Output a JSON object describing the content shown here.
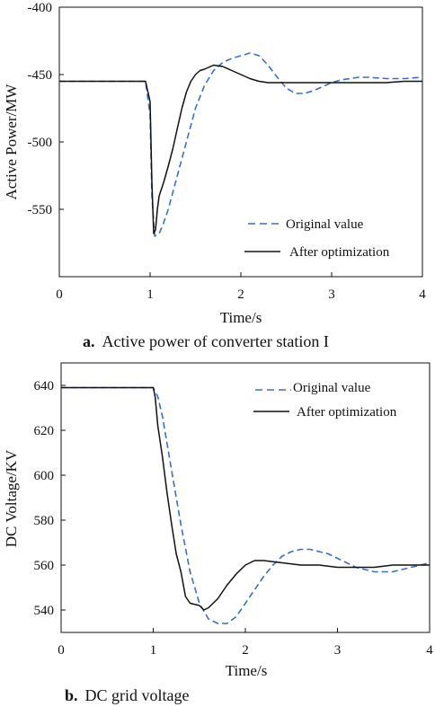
{
  "chart_data": [
    {
      "type": "line",
      "caption_letter": "a.",
      "caption_text": "Active power of converter station I",
      "xlabel": "Time/s",
      "ylabel": "Active Power/MW",
      "xlim": [
        0,
        4
      ],
      "ylim": [
        -600,
        -400
      ],
      "xticks": [
        0,
        1,
        2,
        3,
        4
      ],
      "yticks": [
        -400,
        -450,
        -500,
        -550
      ],
      "grid": false,
      "legend_position": "bottom-right",
      "series": [
        {
          "name": "Original value",
          "color": "#3a6fc4",
          "style": "dashed",
          "x": [
            0,
            0.2,
            0.4,
            0.6,
            0.8,
            0.95,
            1.0,
            1.02,
            1.05,
            1.1,
            1.15,
            1.2,
            1.3,
            1.4,
            1.5,
            1.6,
            1.7,
            1.8,
            1.9,
            2.0,
            2.1,
            2.2,
            2.3,
            2.4,
            2.5,
            2.6,
            2.7,
            2.8,
            2.9,
            3.0,
            3.1,
            3.2,
            3.3,
            3.4,
            3.6,
            3.8,
            4.0
          ],
          "y": [
            -455,
            -455,
            -455,
            -455,
            -455,
            -455,
            -480,
            -540,
            -570,
            -568,
            -560,
            -550,
            -525,
            -500,
            -475,
            -458,
            -447,
            -441,
            -438,
            -436,
            -434,
            -436,
            -443,
            -452,
            -460,
            -464,
            -464,
            -462,
            -459,
            -456,
            -454,
            -453,
            -452,
            -452,
            -453,
            -453,
            -452
          ]
        },
        {
          "name": "After optimization",
          "color": "#111111",
          "style": "solid",
          "x": [
            0,
            0.2,
            0.4,
            0.6,
            0.8,
            0.95,
            1.0,
            1.02,
            1.04,
            1.06,
            1.08,
            1.1,
            1.15,
            1.2,
            1.25,
            1.3,
            1.35,
            1.4,
            1.45,
            1.5,
            1.55,
            1.6,
            1.7,
            1.8,
            1.9,
            2.0,
            2.1,
            2.2,
            2.3,
            2.4,
            2.6,
            2.8,
            3.0,
            3.2,
            3.4,
            3.6,
            3.8,
            4.0
          ],
          "y": [
            -455,
            -455,
            -455,
            -455,
            -455,
            -455,
            -470,
            -530,
            -568,
            -565,
            -550,
            -540,
            -530,
            -518,
            -505,
            -490,
            -475,
            -463,
            -455,
            -450,
            -447,
            -446,
            -443,
            -444,
            -447,
            -450,
            -453,
            -455,
            -456,
            -456,
            -456,
            -456,
            -456,
            -456,
            -456,
            -456,
            -455,
            -455
          ]
        }
      ]
    },
    {
      "type": "line",
      "caption_letter": "b.",
      "caption_text": "DC grid voltage",
      "xlabel": "Time/s",
      "ylabel": "DC Voltage/KV",
      "xlim": [
        0,
        4
      ],
      "ylim": [
        530,
        650
      ],
      "xticks": [
        0,
        1,
        2,
        3,
        4
      ],
      "yticks": [
        540,
        560,
        580,
        600,
        620,
        640
      ],
      "grid": false,
      "legend_position": "top-right",
      "series": [
        {
          "name": "Original value",
          "color": "#3a6fc4",
          "style": "dashed",
          "x": [
            0,
            0.2,
            0.4,
            0.6,
            0.8,
            1.0,
            1.05,
            1.1,
            1.2,
            1.3,
            1.4,
            1.5,
            1.6,
            1.7,
            1.8,
            1.9,
            2.0,
            2.1,
            2.2,
            2.3,
            2.4,
            2.5,
            2.6,
            2.7,
            2.8,
            2.9,
            3.0,
            3.1,
            3.2,
            3.3,
            3.4,
            3.5,
            3.6,
            3.7,
            3.8,
            4.0
          ],
          "y": [
            639,
            639,
            639,
            639,
            639,
            639,
            635,
            626,
            602,
            578,
            557,
            543,
            536,
            534,
            534,
            537,
            543,
            549,
            555,
            560,
            564,
            566,
            567,
            567,
            566,
            565,
            563,
            561,
            559,
            558,
            557,
            557,
            557,
            558,
            559,
            561
          ]
        },
        {
          "name": "After optimization",
          "color": "#111111",
          "style": "solid",
          "x": [
            0,
            0.2,
            0.4,
            0.6,
            0.8,
            1.0,
            1.02,
            1.05,
            1.1,
            1.15,
            1.2,
            1.25,
            1.3,
            1.35,
            1.4,
            1.5,
            1.55,
            1.6,
            1.7,
            1.8,
            1.9,
            2.0,
            2.1,
            2.2,
            2.4,
            2.6,
            2.8,
            3.0,
            3.2,
            3.4,
            3.6,
            3.8,
            4.0
          ],
          "y": [
            639,
            639,
            639,
            639,
            639,
            639,
            635,
            622,
            608,
            592,
            578,
            565,
            557,
            546,
            543,
            542,
            540,
            541,
            545,
            551,
            556,
            560,
            562,
            562,
            561,
            560,
            560,
            559,
            559,
            559,
            560,
            560,
            560
          ]
        }
      ]
    }
  ]
}
